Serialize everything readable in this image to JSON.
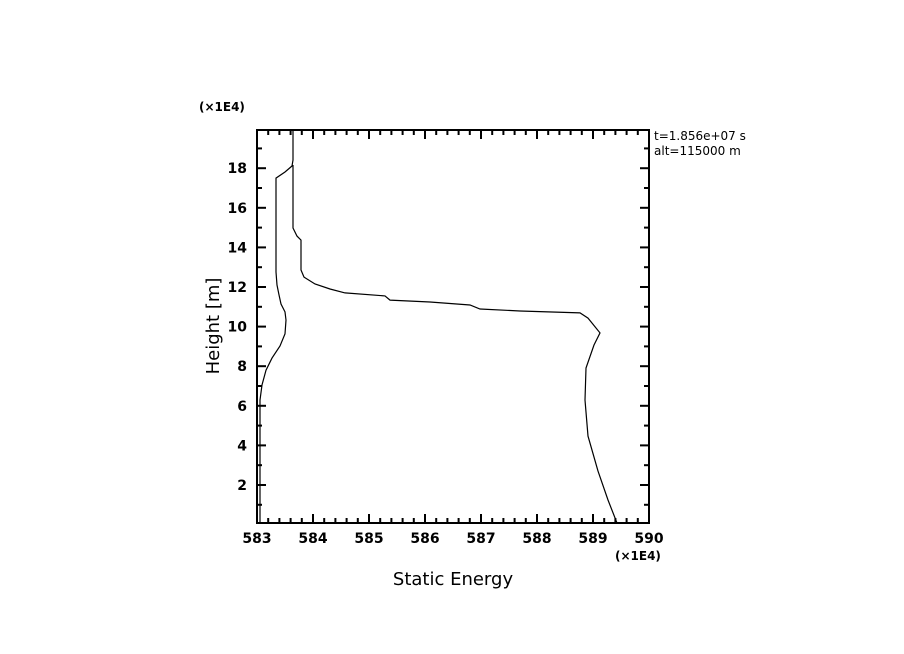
{
  "chart_data": {
    "type": "line",
    "title": "",
    "xlabel": "Static Energy",
    "ylabel": "Height [m]",
    "x_multiplier": "(×1E4)",
    "y_multiplier": "(×1E4)",
    "xlim": [
      583,
      590
    ],
    "ylim": [
      0.08,
      19.93
    ],
    "x_ticks": [
      583,
      584,
      585,
      586,
      587,
      588,
      589,
      590
    ],
    "x_tick_labels": [
      "583",
      "584",
      "585",
      "586",
      "587",
      "588",
      "589",
      "590"
    ],
    "y_ticks": [
      2,
      4,
      6,
      8,
      10,
      12,
      14,
      16,
      18
    ],
    "y_tick_labels": [
      "2",
      "4",
      "6",
      "8",
      "10",
      "12",
      "14",
      "16",
      "18"
    ],
    "x_minor_step": 0.2,
    "y_minor_step": 1,
    "grid": false,
    "annotations": [
      "t=1.856e+07 s",
      "alt=115000 m"
    ],
    "series": [
      {
        "name": "profile-1",
        "color": "#000000",
        "x": [
          583.054,
          583.054,
          583.089,
          583.161,
          583.268,
          583.411,
          583.5,
          583.518,
          583.5,
          583.429,
          583.393,
          583.357,
          583.339,
          583.339,
          583.339,
          583.339,
          583.5,
          583.625,
          583.643,
          583.643
        ],
        "y": [
          0.08,
          6.29,
          7.05,
          7.8,
          8.41,
          9.02,
          9.63,
          10.33,
          10.74,
          11.14,
          11.6,
          12.1,
          12.76,
          13.87,
          15.89,
          17.5,
          17.81,
          18.11,
          18.41,
          19.93
        ]
      },
      {
        "name": "profile-2",
        "color": "#000000",
        "x": [
          583.643,
          583.643,
          583.714,
          583.786,
          583.786,
          583.839,
          584.036,
          584.304,
          584.571,
          585.286,
          585.375,
          586.089,
          586.804,
          586.982,
          587.696,
          588.768,
          588.911,
          589.125,
          589.018,
          588.875,
          588.857,
          588.911,
          589.089,
          589.268,
          589.429
        ],
        "y": [
          18.16,
          14.98,
          14.57,
          14.37,
          12.86,
          12.5,
          12.15,
          11.9,
          11.7,
          11.55,
          11.34,
          11.24,
          11.09,
          10.89,
          10.79,
          10.69,
          10.43,
          9.68,
          9.07,
          7.91,
          6.29,
          4.47,
          2.7,
          1.24,
          0.08
        ]
      }
    ]
  }
}
